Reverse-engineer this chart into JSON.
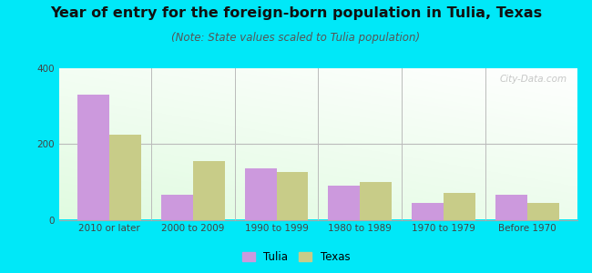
{
  "title": "Year of entry for the foreign-born population in Tulia, Texas",
  "subtitle": "(Note: State values scaled to Tulia population)",
  "categories": [
    "2010 or later",
    "2000 to 2009",
    "1990 to 1999",
    "1980 to 1989",
    "1970 to 1979",
    "Before 1970"
  ],
  "tulia_values": [
    330,
    65,
    135,
    90,
    45,
    65
  ],
  "texas_values": [
    225,
    155,
    125,
    100,
    70,
    45
  ],
  "tulia_color": "#cc99dd",
  "texas_color": "#c8cc88",
  "ylim": [
    0,
    400
  ],
  "yticks": [
    0,
    200,
    400
  ],
  "bar_width": 0.38,
  "outer_background": "#00e8f8",
  "title_fontsize": 11.5,
  "subtitle_fontsize": 8.5,
  "tick_fontsize": 7.5,
  "legend_labels": [
    "Tulia",
    "Texas"
  ],
  "watermark": "City-Data.com"
}
